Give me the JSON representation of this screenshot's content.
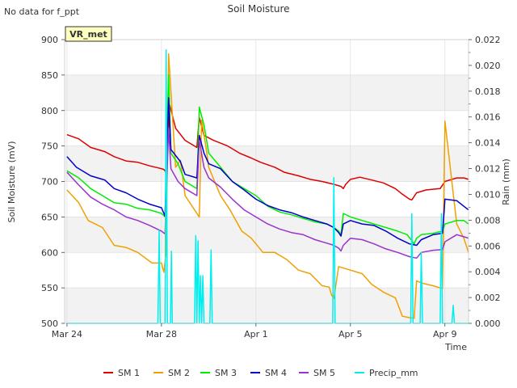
{
  "page": {
    "note": "No data for f_ppt",
    "badge": "VR_met"
  },
  "chart_data": {
    "type": "line",
    "title": "Soil Moisture",
    "xlabel": "Time",
    "ylabel": "Soil Moisture (mV)",
    "ylabel_right": "Rain (mm)",
    "ylim": [
      500,
      900
    ],
    "ylim_right": [
      0,
      0.022
    ],
    "xlim_days": [
      -0.1,
      17.0
    ],
    "x_unit": "days from Mar 24",
    "yticks": [
      500,
      550,
      600,
      650,
      700,
      750,
      800,
      850,
      900
    ],
    "yticks_right": [
      "0.000",
      "0.002",
      "0.004",
      "0.006",
      "0.008",
      "0.010",
      "0.012",
      "0.014",
      "0.016",
      "0.018",
      "0.020",
      "0.022"
    ],
    "xticks": [
      {
        "label": "Mar 24",
        "day": 0
      },
      {
        "label": "Mar 28",
        "day": 4
      },
      {
        "label": "Apr 1",
        "day": 8
      },
      {
        "label": "Apr 5",
        "day": 12
      },
      {
        "label": "Apr 9",
        "day": 16
      }
    ],
    "grid": true,
    "banded_background": true,
    "legend_position": "bottom",
    "series": [
      {
        "name": "SM 1",
        "color": "#dd0000",
        "x": [
          0,
          0.5,
          1.0,
          1.6,
          2.0,
          2.5,
          3.0,
          3.5,
          4.0,
          4.1,
          4.2,
          4.35,
          4.6,
          5.0,
          5.5,
          5.6,
          5.8,
          6.2,
          6.8,
          7.3,
          7.8,
          8.2,
          8.8,
          9.2,
          9.8,
          10.3,
          10.8,
          11.3,
          11.6,
          11.7,
          11.8,
          12.0,
          12.4,
          12.9,
          13.4,
          13.9,
          14.2,
          14.5,
          14.6,
          14.8,
          15.2,
          15.8,
          15.9,
          16.0,
          16.5,
          16.8,
          17.0
        ],
        "y": [
          766,
          760,
          748,
          742,
          735,
          729,
          727,
          722,
          718,
          717,
          713,
          808,
          775,
          758,
          748,
          790,
          765,
          758,
          750,
          740,
          733,
          727,
          720,
          713,
          708,
          703,
          700,
          696,
          693,
          690,
          696,
          703,
          706,
          702,
          698,
          690,
          682,
          675,
          674,
          684,
          688,
          690,
          695,
          700,
          705,
          705,
          703
        ]
      },
      {
        "name": "SM 2",
        "color": "#f0a000",
        "x": [
          0,
          0.5,
          0.9,
          1.5,
          2.0,
          2.5,
          3.0,
          3.6,
          4.0,
          4.1,
          4.2,
          4.3,
          4.6,
          4.8,
          5.0,
          5.6,
          5.7,
          5.9,
          6.0,
          6.5,
          6.9,
          7.4,
          7.8,
          8.3,
          8.8,
          9.3,
          9.8,
          10.3,
          10.8,
          11.1,
          11.2,
          11.3,
          11.5,
          12.0,
          12.5,
          12.9,
          13.4,
          13.9,
          14.2,
          14.5,
          14.7,
          14.8,
          15.0,
          15.5,
          15.9,
          16.0,
          16.5,
          16.8,
          17.0
        ],
        "y": [
          688,
          670,
          645,
          635,
          610,
          607,
          600,
          585,
          585,
          572,
          600,
          880,
          720,
          730,
          680,
          650,
          787,
          745,
          720,
          680,
          660,
          630,
          620,
          600,
          600,
          590,
          575,
          570,
          553,
          551,
          540,
          535,
          580,
          575,
          570,
          555,
          544,
          536,
          510,
          508,
          507,
          560,
          557,
          553,
          549,
          785,
          640,
          620,
          600
        ]
      },
      {
        "name": "SM 3",
        "color": "#00ee00",
        "x": [
          0,
          0.5,
          1.0,
          1.5,
          2.0,
          2.5,
          3.0,
          3.5,
          4.0,
          4.15,
          4.3,
          4.4,
          4.7,
          5.0,
          5.5,
          5.6,
          5.8,
          6.0,
          6.5,
          7.0,
          7.5,
          8.0,
          8.5,
          9.0,
          9.5,
          10.0,
          10.5,
          11.0,
          11.3,
          11.5,
          11.6,
          11.7,
          12.0,
          12.5,
          13.0,
          13.5,
          14.0,
          14.4,
          14.7,
          14.8,
          15.0,
          15.5,
          15.9,
          16.0,
          16.5,
          16.8,
          17.0
        ],
        "y": [
          715,
          705,
          690,
          680,
          670,
          668,
          662,
          660,
          655,
          650,
          850,
          740,
          725,
          700,
          690,
          805,
          780,
          740,
          720,
          700,
          690,
          680,
          665,
          657,
          653,
          648,
          643,
          640,
          635,
          630,
          625,
          655,
          650,
          645,
          640,
          635,
          630,
          625,
          612,
          620,
          625,
          627,
          630,
          640,
          645,
          645,
          640
        ]
      },
      {
        "name": "SM 4",
        "color": "#0000cc",
        "x": [
          0,
          0.4,
          1.0,
          1.6,
          2.0,
          2.5,
          3.0,
          3.5,
          4.0,
          4.15,
          4.3,
          4.4,
          4.8,
          5.0,
          5.5,
          5.6,
          5.8,
          6.0,
          6.5,
          7.0,
          7.5,
          8.0,
          8.5,
          9.0,
          9.5,
          10.0,
          10.5,
          11.0,
          11.3,
          11.5,
          11.6,
          11.7,
          12.0,
          12.5,
          13.0,
          13.5,
          14.0,
          14.5,
          14.8,
          15.0,
          15.5,
          15.9,
          16.0,
          16.5,
          16.8,
          17.0
        ],
        "y": [
          735,
          720,
          708,
          702,
          690,
          684,
          675,
          668,
          663,
          651,
          818,
          745,
          728,
          710,
          705,
          765,
          740,
          725,
          718,
          700,
          688,
          675,
          666,
          660,
          656,
          650,
          645,
          640,
          635,
          628,
          623,
          640,
          645,
          640,
          638,
          630,
          620,
          612,
          610,
          618,
          625,
          627,
          675,
          673,
          665,
          660
        ]
      },
      {
        "name": "SM 5",
        "color": "#9933cc",
        "x": [
          0,
          0.5,
          1.0,
          1.5,
          2.0,
          2.5,
          3.0,
          3.5,
          4.0,
          4.15,
          4.3,
          4.4,
          4.7,
          5.0,
          5.5,
          5.6,
          5.8,
          6.0,
          6.5,
          7.0,
          7.5,
          8.0,
          8.5,
          9.0,
          9.5,
          10.0,
          10.5,
          11.0,
          11.3,
          11.5,
          11.6,
          11.7,
          12.0,
          12.5,
          13.0,
          13.5,
          14.0,
          14.5,
          14.8,
          15.0,
          15.5,
          15.9,
          16.0,
          16.5,
          16.8,
          17.0
        ],
        "y": [
          713,
          695,
          678,
          668,
          660,
          650,
          645,
          638,
          630,
          626,
          775,
          718,
          700,
          690,
          680,
          758,
          720,
          705,
          692,
          675,
          660,
          650,
          640,
          633,
          628,
          625,
          618,
          613,
          610,
          606,
          602,
          610,
          620,
          618,
          612,
          605,
          600,
          594,
          592,
          600,
          603,
          604,
          615,
          625,
          622,
          620
        ]
      },
      {
        "name": "Precip_mm",
        "color": "#00eeee",
        "axis": "right",
        "x": [
          0,
          3.85,
          3.9,
          3.95,
          4.15,
          4.2,
          4.25,
          4.38,
          4.42,
          4.46,
          5.4,
          5.45,
          5.5,
          5.55,
          5.6,
          5.65,
          5.7,
          5.75,
          5.8,
          5.85,
          6.05,
          6.1,
          6.15,
          11.25,
          11.3,
          11.35,
          14.55,
          14.6,
          14.65,
          14.95,
          15.0,
          15.05,
          15.8,
          15.85,
          15.9,
          16.3,
          16.35,
          16.4,
          17.0
        ],
        "y": [
          0,
          0,
          0.0072,
          0,
          0,
          0.0212,
          0,
          0,
          0.0056,
          0,
          0,
          0.0068,
          0,
          0.0064,
          0,
          0.0037,
          0,
          0.0037,
          0,
          0,
          0,
          0.0057,
          0,
          0,
          0.0113,
          0,
          0,
          0.0085,
          0,
          0,
          0.0055,
          0,
          0,
          0.0085,
          0,
          0,
          0.0014,
          0,
          0
        ]
      }
    ]
  }
}
